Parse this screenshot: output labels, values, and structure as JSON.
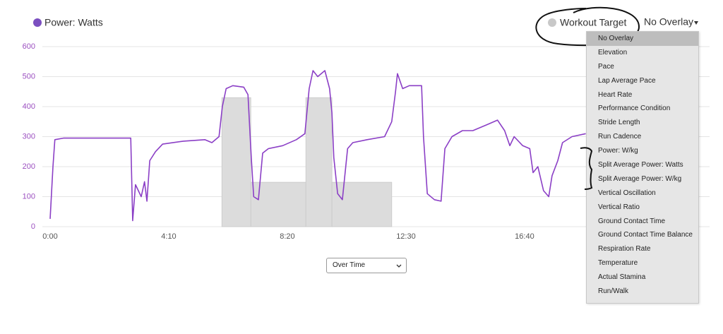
{
  "chart_data": {
    "type": "line",
    "series": [
      {
        "name": "Power: Watts",
        "color": "#8b3fc6",
        "x": [
          0,
          6,
          10,
          28,
          118,
          170,
          174,
          180,
          192,
          199,
          204,
          210,
          222,
          237,
          281,
          326,
          341,
          356,
          363,
          371,
          385,
          408,
          417,
          424,
          429,
          439,
          448,
          460,
          490,
          519,
          537,
          546,
          554,
          564,
          579,
          589,
          594,
          598,
          606,
          616,
          627,
          638,
          668,
          705,
          720,
          728,
          732,
          743,
          757,
          783,
          787,
          795,
          810,
          824,
          832,
          847,
          869,
          891,
          921,
          943,
          958,
          969,
          978,
          996,
          1011,
          1018,
          1028,
          1040,
          1051,
          1058,
          1070,
          1080,
          1100,
          1129
        ],
        "values": [
          26,
          200,
          290,
          295,
          295,
          295,
          20,
          140,
          100,
          150,
          85,
          220,
          250,
          275,
          285,
          290,
          280,
          300,
          400,
          460,
          470,
          465,
          440,
          230,
          100,
          90,
          245,
          260,
          270,
          290,
          310,
          460,
          520,
          500,
          520,
          460,
          380,
          230,
          110,
          90,
          260,
          280,
          290,
          300,
          350,
          450,
          510,
          460,
          470,
          470,
          300,
          110,
          90,
          85,
          260,
          300,
          320,
          320,
          340,
          355,
          320,
          270,
          300,
          270,
          260,
          180,
          200,
          120,
          100,
          170,
          220,
          280,
          300,
          310
        ]
      }
    ],
    "target": {
      "name": "Workout Target",
      "color": "#dcdcdc",
      "bins": [
        362,
        423,
        539,
        594,
        720
      ],
      "values": [
        430,
        148,
        430,
        148
      ]
    },
    "xlim": [
      0,
      1390
    ],
    "xticks": [
      {
        "value": 0,
        "label": "0:00"
      },
      {
        "value": 250,
        "label": "4:10"
      },
      {
        "value": 500,
        "label": "8:20"
      },
      {
        "value": 750,
        "label": "12:30"
      },
      {
        "value": 1000,
        "label": "16:40"
      }
    ],
    "ylim": [
      0,
      600
    ],
    "yticks": [
      0,
      100,
      200,
      300,
      400,
      500,
      600
    ],
    "grid": true
  },
  "overlay_button": "No Overlay",
  "overlay_menu": [
    "No Overlay",
    "Elevation",
    "Pace",
    "Lap Average Pace",
    "Heart Rate",
    "Performance Condition",
    "Stride Length",
    "Run Cadence",
    "Power: W/kg",
    "Split Average Power: Watts",
    "Split Average Power: W/kg",
    "Vertical Oscillation",
    "Vertical Ratio",
    "Ground Contact Time",
    "Ground Contact Time Balance",
    "Respiration Rate",
    "Temperature",
    "Actual Stamina",
    "Run/Walk"
  ],
  "x_axis_select": "Over Time"
}
